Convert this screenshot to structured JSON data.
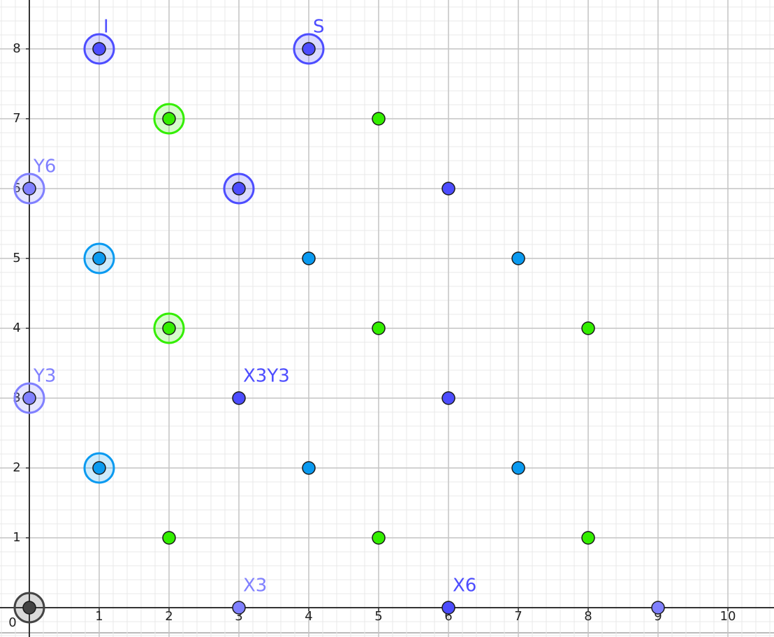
{
  "chart_data": {
    "type": "scatter",
    "xlim": [
      -0.42,
      10.66
    ],
    "ylim": [
      -0.42,
      8.7
    ],
    "xticks": [
      0,
      1,
      2,
      3,
      4,
      5,
      6,
      7,
      8,
      9,
      10
    ],
    "yticks": [
      1,
      2,
      3,
      4,
      5,
      6,
      7,
      8
    ],
    "grid": true,
    "minor_grid_step": 0.2,
    "series": [
      {
        "color": "#4d4dff",
        "x": [
          1,
          4,
          3,
          6,
          3,
          6,
          6
        ],
        "y": [
          8,
          8,
          6,
          6,
          3,
          3,
          0
        ],
        "labels": [
          "I",
          "S",
          null,
          null,
          "X3Y3",
          null,
          "X6"
        ],
        "highlighted": [
          true,
          true,
          true,
          false,
          false,
          false,
          false
        ]
      },
      {
        "color": "#8080ff",
        "x": [
          0,
          0,
          3,
          9
        ],
        "y": [
          6,
          3,
          0,
          0
        ],
        "labels": [
          "Y6",
          "Y3",
          "X3",
          null
        ],
        "highlighted": [
          true,
          true,
          false,
          false
        ]
      },
      {
        "color": "#33ee00",
        "x": [
          2,
          5,
          2,
          5,
          8,
          2,
          5,
          8
        ],
        "y": [
          7,
          7,
          4,
          4,
          4,
          1,
          1,
          1
        ],
        "highlighted": [
          true,
          false,
          true,
          false,
          false,
          false,
          false,
          false
        ]
      },
      {
        "color": "#0a9af0",
        "x": [
          1,
          4,
          7,
          1,
          4,
          7
        ],
        "y": [
          5,
          5,
          5,
          2,
          2,
          2
        ],
        "highlighted": [
          true,
          false,
          false,
          true,
          false,
          false
        ]
      },
      {
        "color": "#444444",
        "x": [
          0
        ],
        "y": [
          0
        ],
        "highlighted": [
          true
        ]
      }
    ]
  }
}
